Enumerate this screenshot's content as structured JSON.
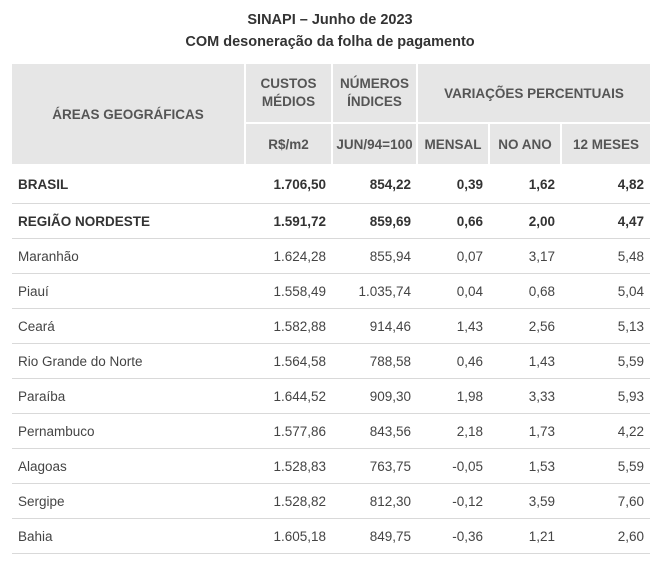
{
  "title": {
    "line1": "SINAPI – Junho de 2023",
    "line2": "COM desoneração da folha de pagamento"
  },
  "headers": {
    "area": "ÁREAS GEOGRÁFICAS",
    "custos_l1": "CUSTOS",
    "custos_l2": "MÉDIOS",
    "numeros_l1": "NÚMEROS",
    "numeros_l2": "ÍNDICES",
    "variacoes": "VARIAÇÕES PERCENTUAIS",
    "unit_custos": "R$/m2",
    "unit_numeros": "JUN/94=100",
    "mensal": "MENSAL",
    "no_ano": "NO ANO",
    "doze_meses": "12 MESES"
  },
  "rows": [
    {
      "name": "BRASIL",
      "custo": "1.706,50",
      "indice": "854,22",
      "mensal": "0,39",
      "ano": "1,62",
      "meses12": "4,82"
    },
    {
      "name": "REGIÃO NORDESTE",
      "custo": "1.591,72",
      "indice": "859,69",
      "mensal": "0,66",
      "ano": "2,00",
      "meses12": "4,47"
    },
    {
      "name": "Maranhão",
      "custo": "1.624,28",
      "indice": "855,94",
      "mensal": "0,07",
      "ano": "3,17",
      "meses12": "5,48"
    },
    {
      "name": "Piauí",
      "custo": "1.558,49",
      "indice": "1.035,74",
      "mensal": "0,04",
      "ano": "0,68",
      "meses12": "5,04"
    },
    {
      "name": "Ceará",
      "custo": "1.582,88",
      "indice": "914,46",
      "mensal": "1,43",
      "ano": "2,56",
      "meses12": "5,13"
    },
    {
      "name": "Rio Grande do Norte",
      "custo": "1.564,58",
      "indice": "788,58",
      "mensal": "0,46",
      "ano": "1,43",
      "meses12": "5,59"
    },
    {
      "name": "Paraíba",
      "custo": "1.644,52",
      "indice": "909,30",
      "mensal": "1,98",
      "ano": "3,33",
      "meses12": "5,93"
    },
    {
      "name": "Pernambuco",
      "custo": "1.577,86",
      "indice": "843,56",
      "mensal": "2,18",
      "ano": "1,73",
      "meses12": "4,22"
    },
    {
      "name": "Alagoas",
      "custo": "1.528,83",
      "indice": "763,75",
      "mensal": "-0,05",
      "ano": "1,53",
      "meses12": "5,59"
    },
    {
      "name": "Sergipe",
      "custo": "1.528,82",
      "indice": "812,30",
      "mensal": "-0,12",
      "ano": "3,59",
      "meses12": "7,60"
    },
    {
      "name": "Bahia",
      "custo": "1.605,18",
      "indice": "849,75",
      "mensal": "-0,36",
      "ano": "1,21",
      "meses12": "2,60"
    }
  ]
}
